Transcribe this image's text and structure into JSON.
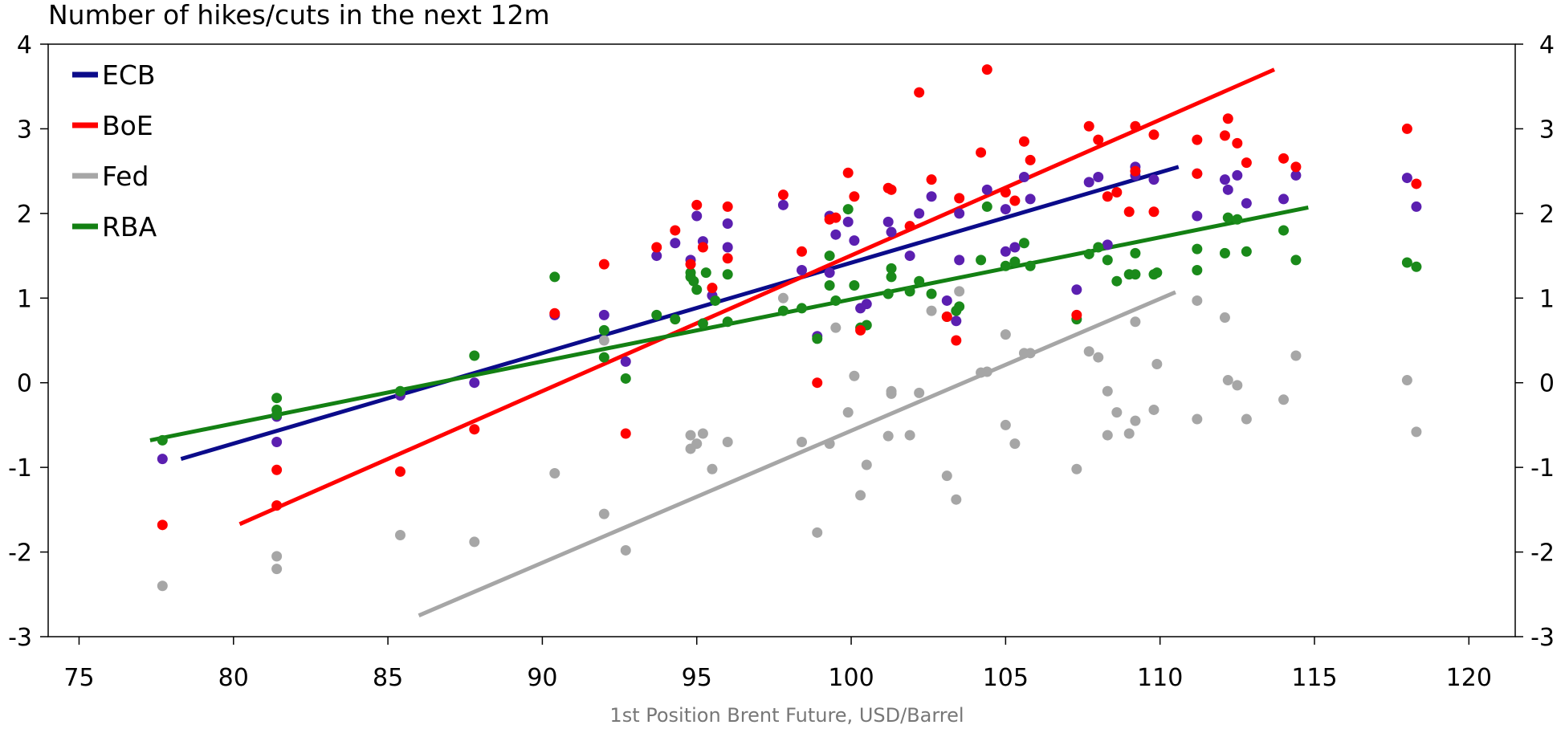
{
  "chart_data": {
    "type": "scatter",
    "title": "Number of hikes/cuts in the next 12m",
    "xlabel": "1st Position Brent Future, USD/Barrel",
    "xlim": [
      74,
      121.5
    ],
    "ylim": [
      -3,
      4
    ],
    "xticks": [
      "75",
      "80",
      "85",
      "90",
      "95",
      "100",
      "105",
      "110",
      "115",
      "120"
    ],
    "yticks": [
      "4",
      "3",
      "2",
      "1",
      "0",
      "-1",
      "-2",
      "-3"
    ],
    "legend_position": "top-left",
    "series": [
      {
        "name": "ECB",
        "color": "#5B1FB0",
        "line_color": "#0B0B8A",
        "trend": [
          [
            78.3,
            -0.9
          ],
          [
            110.6,
            2.55
          ]
        ],
        "points": [
          [
            77.7,
            -0.9
          ],
          [
            81.4,
            -0.7
          ],
          [
            81.4,
            -0.4
          ],
          [
            85.4,
            -0.15
          ],
          [
            87.8,
            0.0
          ],
          [
            90.4,
            0.8
          ],
          [
            92.0,
            0.8
          ],
          [
            92.7,
            0.25
          ],
          [
            93.7,
            1.5
          ],
          [
            94.3,
            1.65
          ],
          [
            94.8,
            1.45
          ],
          [
            95.0,
            1.97
          ],
          [
            95.2,
            1.67
          ],
          [
            95.5,
            1.03
          ],
          [
            96.0,
            1.88
          ],
          [
            96.0,
            1.6
          ],
          [
            97.8,
            2.1
          ],
          [
            98.4,
            1.33
          ],
          [
            98.9,
            0.55
          ],
          [
            99.3,
            1.97
          ],
          [
            99.3,
            1.3
          ],
          [
            99.5,
            1.75
          ],
          [
            99.9,
            1.9
          ],
          [
            100.1,
            1.68
          ],
          [
            100.3,
            0.88
          ],
          [
            100.5,
            0.93
          ],
          [
            101.2,
            1.9
          ],
          [
            101.3,
            1.78
          ],
          [
            101.9,
            1.5
          ],
          [
            102.2,
            2.0
          ],
          [
            102.6,
            2.2
          ],
          [
            103.1,
            0.97
          ],
          [
            103.4,
            0.73
          ],
          [
            103.5,
            2.0
          ],
          [
            103.5,
            1.45
          ],
          [
            104.4,
            2.28
          ],
          [
            105.0,
            1.55
          ],
          [
            105.0,
            2.05
          ],
          [
            105.3,
            1.6
          ],
          [
            105.6,
            2.43
          ],
          [
            105.8,
            2.17
          ],
          [
            107.3,
            1.1
          ],
          [
            107.7,
            2.37
          ],
          [
            108.0,
            2.43
          ],
          [
            108.3,
            1.63
          ],
          [
            109.2,
            2.55
          ],
          [
            109.2,
            2.45
          ],
          [
            109.8,
            2.4
          ],
          [
            111.2,
            2.47
          ],
          [
            111.2,
            1.97
          ],
          [
            112.1,
            2.4
          ],
          [
            112.2,
            2.28
          ],
          [
            112.5,
            2.45
          ],
          [
            112.8,
            2.12
          ],
          [
            114.0,
            2.17
          ],
          [
            114.4,
            2.45
          ],
          [
            118.0,
            2.42
          ],
          [
            118.3,
            2.08
          ]
        ]
      },
      {
        "name": "BoE",
        "color": "#FF0000",
        "line_color": "#FF0000",
        "trend": [
          [
            80.2,
            -1.67
          ],
          [
            113.7,
            3.7
          ]
        ],
        "points": [
          [
            77.7,
            -1.68
          ],
          [
            81.4,
            -1.03
          ],
          [
            81.4,
            -1.45
          ],
          [
            85.4,
            -1.05
          ],
          [
            87.8,
            -0.55
          ],
          [
            90.4,
            0.82
          ],
          [
            92.0,
            1.4
          ],
          [
            92.7,
            -0.6
          ],
          [
            93.7,
            1.6
          ],
          [
            94.3,
            1.8
          ],
          [
            94.8,
            1.4
          ],
          [
            95.0,
            2.1
          ],
          [
            95.2,
            1.6
          ],
          [
            95.5,
            1.12
          ],
          [
            96.0,
            2.08
          ],
          [
            96.0,
            1.47
          ],
          [
            97.8,
            2.22
          ],
          [
            98.4,
            1.55
          ],
          [
            98.9,
            0.0
          ],
          [
            99.3,
            1.93
          ],
          [
            99.5,
            1.95
          ],
          [
            99.9,
            2.48
          ],
          [
            100.1,
            2.2
          ],
          [
            100.3,
            0.62
          ],
          [
            101.2,
            2.3
          ],
          [
            101.3,
            2.28
          ],
          [
            101.9,
            1.85
          ],
          [
            102.2,
            3.43
          ],
          [
            102.6,
            2.4
          ],
          [
            103.1,
            0.78
          ],
          [
            103.4,
            0.5
          ],
          [
            103.5,
            2.18
          ],
          [
            104.2,
            2.72
          ],
          [
            104.4,
            3.7
          ],
          [
            105.0,
            2.25
          ],
          [
            105.3,
            2.15
          ],
          [
            105.6,
            2.85
          ],
          [
            105.8,
            2.63
          ],
          [
            107.3,
            0.8
          ],
          [
            107.7,
            3.03
          ],
          [
            108.0,
            2.87
          ],
          [
            108.3,
            2.2
          ],
          [
            108.6,
            2.25
          ],
          [
            109.0,
            2.02
          ],
          [
            109.2,
            3.03
          ],
          [
            109.2,
            2.5
          ],
          [
            109.8,
            2.02
          ],
          [
            109.8,
            2.93
          ],
          [
            111.2,
            2.87
          ],
          [
            111.2,
            2.47
          ],
          [
            112.1,
            2.92
          ],
          [
            112.2,
            3.12
          ],
          [
            112.5,
            2.83
          ],
          [
            112.8,
            2.6
          ],
          [
            114.0,
            2.65
          ],
          [
            114.4,
            2.55
          ],
          [
            118.0,
            3.0
          ],
          [
            118.3,
            2.35
          ]
        ]
      },
      {
        "name": "Fed",
        "color": "#A6A6A6",
        "line_color": "#A6A6A6",
        "trend": [
          [
            86.0,
            -2.75
          ],
          [
            110.5,
            1.07
          ]
        ],
        "points": [
          [
            77.7,
            -2.4
          ],
          [
            81.4,
            -2.05
          ],
          [
            81.4,
            -2.2
          ],
          [
            85.4,
            -1.8
          ],
          [
            87.8,
            -1.88
          ],
          [
            90.4,
            -1.07
          ],
          [
            92.0,
            -1.55
          ],
          [
            92.0,
            0.5
          ],
          [
            92.7,
            -1.98
          ],
          [
            94.8,
            -0.62
          ],
          [
            94.8,
            -0.78
          ],
          [
            95.0,
            -0.72
          ],
          [
            95.2,
            -0.6
          ],
          [
            95.5,
            -1.02
          ],
          [
            96.0,
            -0.7
          ],
          [
            97.8,
            1.0
          ],
          [
            98.4,
            -0.7
          ],
          [
            98.9,
            -1.77
          ],
          [
            99.3,
            -0.72
          ],
          [
            99.5,
            0.65
          ],
          [
            99.9,
            -0.35
          ],
          [
            100.1,
            0.08
          ],
          [
            100.3,
            -1.33
          ],
          [
            100.5,
            -0.97
          ],
          [
            101.2,
            -0.63
          ],
          [
            101.3,
            -0.13
          ],
          [
            101.3,
            -0.1
          ],
          [
            101.9,
            -0.62
          ],
          [
            102.2,
            -0.12
          ],
          [
            102.6,
            0.85
          ],
          [
            103.1,
            -1.1
          ],
          [
            103.4,
            -1.38
          ],
          [
            103.5,
            1.08
          ],
          [
            104.2,
            0.12
          ],
          [
            104.4,
            0.13
          ],
          [
            105.0,
            0.57
          ],
          [
            105.0,
            -0.5
          ],
          [
            105.3,
            -0.72
          ],
          [
            105.6,
            0.35
          ],
          [
            105.8,
            0.35
          ],
          [
            107.3,
            -1.02
          ],
          [
            107.7,
            0.37
          ],
          [
            108.0,
            0.3
          ],
          [
            108.3,
            -0.62
          ],
          [
            108.3,
            -0.1
          ],
          [
            108.6,
            -0.35
          ],
          [
            109.0,
            -0.6
          ],
          [
            109.2,
            0.72
          ],
          [
            109.2,
            -0.45
          ],
          [
            109.8,
            -0.32
          ],
          [
            109.9,
            0.22
          ],
          [
            111.2,
            0.97
          ],
          [
            111.2,
            -0.43
          ],
          [
            112.1,
            0.77
          ],
          [
            112.2,
            0.03
          ],
          [
            112.5,
            -0.03
          ],
          [
            112.8,
            -0.43
          ],
          [
            114.0,
            -0.2
          ],
          [
            114.4,
            0.32
          ],
          [
            118.0,
            0.03
          ],
          [
            118.3,
            -0.58
          ]
        ]
      },
      {
        "name": "RBA",
        "color": "#1A8A1A",
        "line_color": "#138013",
        "trend": [
          [
            77.3,
            -0.68
          ],
          [
            114.8,
            2.07
          ]
        ],
        "points": [
          [
            77.7,
            -0.68
          ],
          [
            81.4,
            -0.18
          ],
          [
            81.4,
            -0.32
          ],
          [
            81.4,
            -0.38
          ],
          [
            85.4,
            -0.1
          ],
          [
            87.8,
            0.32
          ],
          [
            90.4,
            1.25
          ],
          [
            92.0,
            0.62
          ],
          [
            92.0,
            0.3
          ],
          [
            92.7,
            0.05
          ],
          [
            93.7,
            0.8
          ],
          [
            94.3,
            0.75
          ],
          [
            94.8,
            1.3
          ],
          [
            94.8,
            1.25
          ],
          [
            94.9,
            1.2
          ],
          [
            95.0,
            1.1
          ],
          [
            95.2,
            0.7
          ],
          [
            95.3,
            1.3
          ],
          [
            95.6,
            0.97
          ],
          [
            96.0,
            1.28
          ],
          [
            96.0,
            0.72
          ],
          [
            97.8,
            0.85
          ],
          [
            98.4,
            0.88
          ],
          [
            98.9,
            0.52
          ],
          [
            99.3,
            1.15
          ],
          [
            99.3,
            1.5
          ],
          [
            99.5,
            0.97
          ],
          [
            99.9,
            2.05
          ],
          [
            100.1,
            1.15
          ],
          [
            100.3,
            0.65
          ],
          [
            100.5,
            0.68
          ],
          [
            101.2,
            1.05
          ],
          [
            101.3,
            1.35
          ],
          [
            101.3,
            1.25
          ],
          [
            101.9,
            1.08
          ],
          [
            102.2,
            1.2
          ],
          [
            102.6,
            1.05
          ],
          [
            103.1,
            0.78
          ],
          [
            103.4,
            0.85
          ],
          [
            103.5,
            0.9
          ],
          [
            104.2,
            1.45
          ],
          [
            104.4,
            2.08
          ],
          [
            105.0,
            1.38
          ],
          [
            105.3,
            1.43
          ],
          [
            105.6,
            1.65
          ],
          [
            105.8,
            1.38
          ],
          [
            107.3,
            0.75
          ],
          [
            107.7,
            1.52
          ],
          [
            108.0,
            1.6
          ],
          [
            108.3,
            1.45
          ],
          [
            108.6,
            1.2
          ],
          [
            109.0,
            1.28
          ],
          [
            109.2,
            1.28
          ],
          [
            109.2,
            1.53
          ],
          [
            109.8,
            1.28
          ],
          [
            109.9,
            1.3
          ],
          [
            111.2,
            1.58
          ],
          [
            111.2,
            1.33
          ],
          [
            112.1,
            1.53
          ],
          [
            112.2,
            1.95
          ],
          [
            112.5,
            1.93
          ],
          [
            112.8,
            1.55
          ],
          [
            114.0,
            1.8
          ],
          [
            114.4,
            1.45
          ],
          [
            118.0,
            1.42
          ],
          [
            118.3,
            1.37
          ]
        ]
      }
    ]
  }
}
